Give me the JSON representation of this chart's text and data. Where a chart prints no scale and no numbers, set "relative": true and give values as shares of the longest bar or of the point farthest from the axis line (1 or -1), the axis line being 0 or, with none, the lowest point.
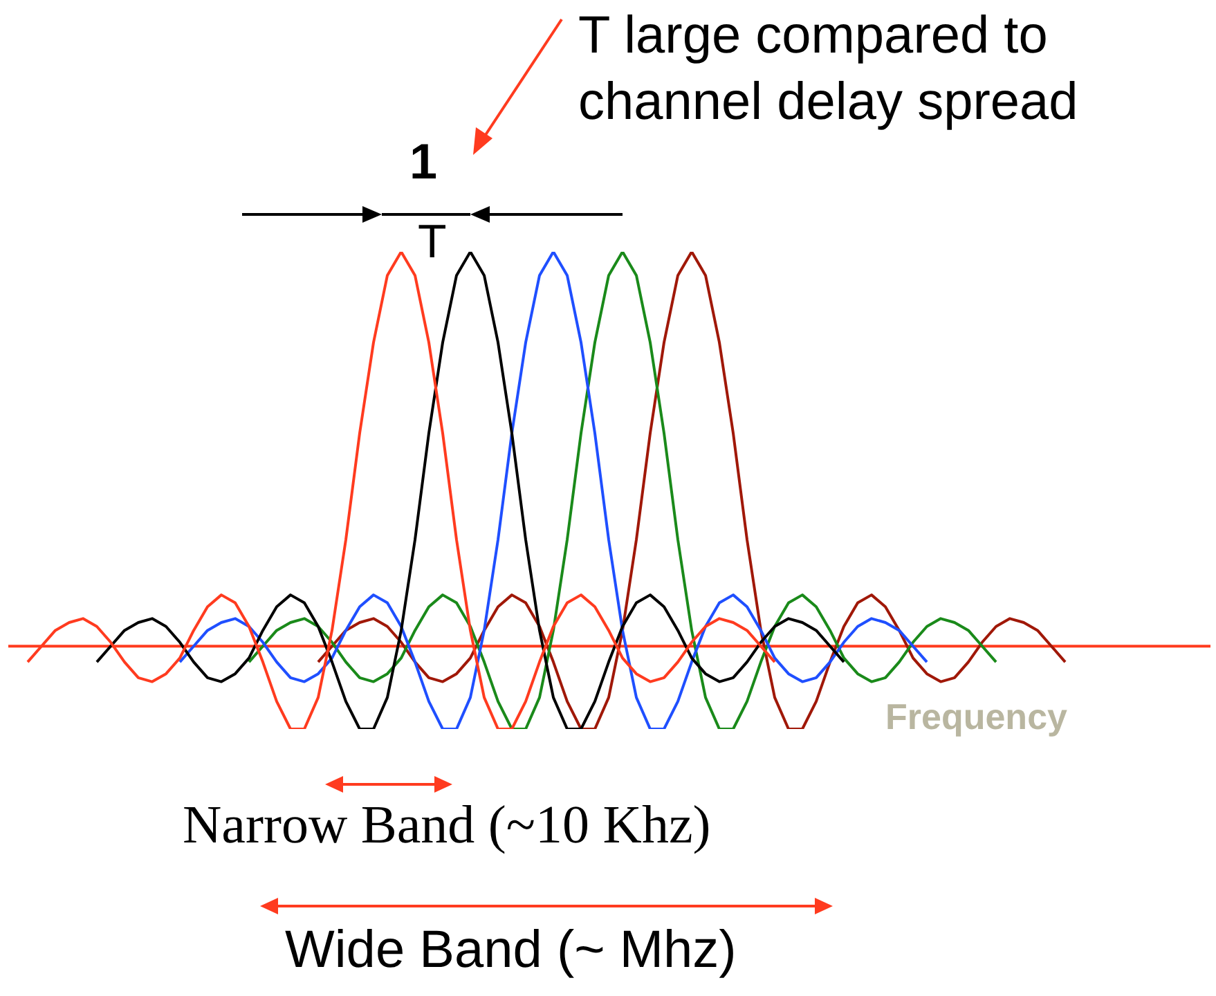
{
  "chart_data": {
    "type": "line",
    "relative": true,
    "marker": "none",
    "legend": false,
    "xlabel": "Frequency",
    "ref_lines": [
      {
        "axis": "y",
        "value": 0,
        "color": "#ff3b1f"
      }
    ],
    "annotations": [
      "T large compared to channel delay spread",
      "1",
      "T",
      "Narrow Band (~10 Khz)",
      "Wide Band (~ Mhz)"
    ],
    "categories": [
      null,
      null,
      null,
      null,
      null,
      null,
      null,
      null,
      null,
      null,
      null,
      null,
      null,
      null,
      null,
      null,
      null,
      null,
      null,
      null,
      null,
      null,
      null,
      null,
      null,
      null,
      null,
      null,
      null,
      null,
      null,
      null,
      null,
      null,
      null,
      null,
      null,
      null,
      null,
      null,
      null,
      null,
      null,
      null,
      null,
      null,
      null,
      null,
      null,
      null,
      null,
      null,
      null,
      null,
      null,
      null,
      null,
      null,
      null,
      null,
      null,
      null,
      null,
      null,
      null,
      null,
      null,
      null,
      null,
      null,
      null,
      null,
      null,
      null,
      null,
      null
    ],
    "series": [
      {
        "color": "#ff3b1f",
        "values": [
          -0.04,
          0,
          0.04,
          0.06,
          0.07,
          0.05,
          0.01,
          -0.04,
          -0.08,
          -0.09,
          -0.07,
          -0.03,
          0.04,
          0.1,
          0.13,
          0.11,
          0.05,
          -0.04,
          -0.14,
          -0.21,
          -0.21,
          -0.13,
          0.04,
          0.27,
          0.54,
          0.77,
          0.94,
          1,
          0.94,
          0.77,
          0.54,
          0.27,
          0.04,
          -0.13,
          -0.21,
          -0.21,
          -0.14,
          -0.04,
          0.05,
          0.11,
          0.13,
          0.1,
          0.04,
          -0.03,
          -0.07,
          -0.09,
          -0.08,
          -0.04,
          0.01,
          0.05,
          0.07,
          0.06,
          0.04,
          0,
          -0.04,
          null,
          null,
          null,
          null,
          null,
          null,
          null,
          null,
          null,
          null,
          null,
          null,
          null,
          null,
          null,
          null,
          null,
          null,
          null,
          null,
          null
        ]
      },
      {
        "color": "#000000",
        "values": [
          null,
          null,
          null,
          null,
          null,
          -0.04,
          0,
          0.04,
          0.06,
          0.07,
          0.05,
          0.01,
          -0.04,
          -0.08,
          -0.09,
          -0.07,
          -0.03,
          0.04,
          0.1,
          0.13,
          0.11,
          0.05,
          -0.04,
          -0.14,
          -0.21,
          -0.21,
          -0.13,
          0.04,
          0.27,
          0.54,
          0.77,
          0.94,
          1,
          0.94,
          0.77,
          0.54,
          0.27,
          0.04,
          -0.13,
          -0.21,
          -0.21,
          -0.14,
          -0.04,
          0.05,
          0.11,
          0.13,
          0.1,
          0.04,
          -0.03,
          -0.07,
          -0.09,
          -0.08,
          -0.04,
          0.01,
          0.05,
          0.07,
          0.06,
          0.04,
          0,
          -0.04,
          null,
          null,
          null,
          null,
          null,
          null,
          null,
          null,
          null,
          null,
          null,
          null,
          null,
          null,
          null,
          null
        ]
      },
      {
        "color": "#1f4fff",
        "values": [
          null,
          null,
          null,
          null,
          null,
          null,
          null,
          null,
          null,
          null,
          null,
          -0.04,
          0,
          0.04,
          0.06,
          0.07,
          0.05,
          0.01,
          -0.04,
          -0.08,
          -0.09,
          -0.07,
          -0.03,
          0.04,
          0.1,
          0.13,
          0.11,
          0.05,
          -0.04,
          -0.14,
          -0.21,
          -0.21,
          -0.13,
          0.04,
          0.27,
          0.54,
          0.77,
          0.94,
          1,
          0.94,
          0.77,
          0.54,
          0.27,
          0.04,
          -0.13,
          -0.21,
          -0.21,
          -0.14,
          -0.04,
          0.05,
          0.11,
          0.13,
          0.1,
          0.04,
          -0.03,
          -0.07,
          -0.09,
          -0.08,
          -0.04,
          0.01,
          0.05,
          0.07,
          0.06,
          0.04,
          0,
          -0.04,
          null,
          null,
          null,
          null,
          null,
          null,
          null,
          null,
          null,
          null
        ]
      },
      {
        "color": "#1a8a1a",
        "values": [
          null,
          null,
          null,
          null,
          null,
          null,
          null,
          null,
          null,
          null,
          null,
          null,
          null,
          null,
          null,
          null,
          -0.04,
          0,
          0.04,
          0.06,
          0.07,
          0.05,
          0.01,
          -0.04,
          -0.08,
          -0.09,
          -0.07,
          -0.03,
          0.04,
          0.1,
          0.13,
          0.11,
          0.05,
          -0.04,
          -0.14,
          -0.21,
          -0.21,
          -0.13,
          0.04,
          0.27,
          0.54,
          0.77,
          0.94,
          1,
          0.94,
          0.77,
          0.54,
          0.27,
          0.04,
          -0.13,
          -0.21,
          -0.21,
          -0.14,
          -0.04,
          0.05,
          0.11,
          0.13,
          0.1,
          0.04,
          -0.03,
          -0.07,
          -0.09,
          -0.08,
          -0.04,
          0.01,
          0.05,
          0.07,
          0.06,
          0.04,
          0,
          -0.04,
          null,
          null,
          null,
          null,
          null
        ]
      },
      {
        "color": "#a01808",
        "values": [
          null,
          null,
          null,
          null,
          null,
          null,
          null,
          null,
          null,
          null,
          null,
          null,
          null,
          null,
          null,
          null,
          null,
          null,
          null,
          null,
          null,
          -0.04,
          0,
          0.04,
          0.06,
          0.07,
          0.05,
          0.01,
          -0.04,
          -0.08,
          -0.09,
          -0.07,
          -0.03,
          0.04,
          0.1,
          0.13,
          0.11,
          0.05,
          -0.04,
          -0.14,
          -0.21,
          -0.21,
          -0.13,
          0.04,
          0.27,
          0.54,
          0.77,
          0.94,
          1,
          0.94,
          0.77,
          0.54,
          0.27,
          0.04,
          -0.13,
          -0.21,
          -0.21,
          -0.14,
          -0.04,
          0.05,
          0.11,
          0.13,
          0.1,
          0.04,
          -0.03,
          -0.07,
          -0.09,
          -0.08,
          -0.04,
          0.01,
          0.05,
          0.07,
          0.06,
          0.04,
          0,
          -0.04
        ]
      }
    ]
  }
}
